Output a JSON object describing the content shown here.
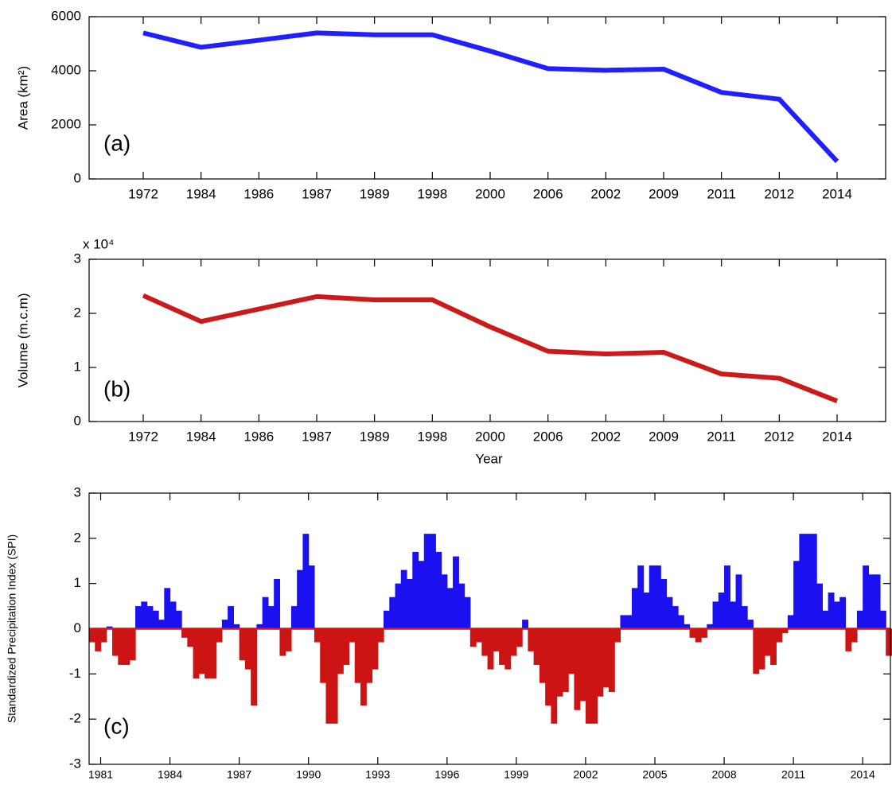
{
  "chart_data": [
    {
      "type": "line",
      "annotation": "(a)",
      "y_label": "Area (km²)",
      "categories": [
        "1972",
        "1984",
        "1986",
        "1987",
        "1989",
        "1998",
        "2000",
        "2006",
        "2002",
        "2009",
        "2011",
        "2012",
        "2014"
      ],
      "values": [
        5400,
        4870,
        5130,
        5400,
        5330,
        5330,
        4730,
        4080,
        4020,
        4060,
        3200,
        2950,
        650
      ],
      "color": "#1f1fff",
      "ylim": [
        0,
        6000
      ],
      "yticks": [
        0,
        2000,
        4000,
        6000
      ]
    },
    {
      "type": "line",
      "annotation": "(b)",
      "y_label": "Volume (m.c.m)",
      "y_multiplier": "x 10⁴",
      "x_label": "Year",
      "categories": [
        "1972",
        "1984",
        "1986",
        "1987",
        "1989",
        "1998",
        "2000",
        "2006",
        "2002",
        "2009",
        "2011",
        "2012",
        "2014"
      ],
      "values": [
        23300,
        18500,
        20800,
        23100,
        22500,
        22500,
        17500,
        13000,
        12500,
        12800,
        8800,
        8000,
        3800
      ],
      "color": "#cc1a1a",
      "ylim": [
        0,
        30000
      ],
      "yticks": [
        {
          "value": 0,
          "label": "0"
        },
        {
          "value": 10000,
          "label": "1"
        },
        {
          "value": 20000,
          "label": "2"
        },
        {
          "value": 30000,
          "label": "3"
        }
      ]
    },
    {
      "type": "area",
      "annotation": "(c)",
      "y_label": "Standardized Precipitation Index (SPI)",
      "x": [
        1980.5,
        1980.75,
        1981,
        1981.25,
        1981.5,
        1981.75,
        1982,
        1982.25,
        1982.5,
        1982.75,
        1983,
        1983.25,
        1983.5,
        1983.75,
        1984,
        1984.25,
        1984.5,
        1984.75,
        1985,
        1985.25,
        1985.5,
        1985.75,
        1986,
        1986.25,
        1986.5,
        1986.75,
        1987,
        1987.25,
        1987.5,
        1987.75,
        1988,
        1988.25,
        1988.5,
        1988.75,
        1989,
        1989.25,
        1989.5,
        1989.75,
        1990,
        1990.25,
        1990.5,
        1990.75,
        1991,
        1991.25,
        1991.5,
        1991.75,
        1992,
        1992.25,
        1992.5,
        1992.75,
        1993,
        1993.25,
        1993.5,
        1993.75,
        1994,
        1994.25,
        1994.5,
        1994.75,
        1995,
        1995.25,
        1995.5,
        1995.75,
        1996,
        1996.25,
        1996.5,
        1996.75,
        1997,
        1997.25,
        1997.5,
        1997.75,
        1998,
        1998.25,
        1998.5,
        1998.75,
        1999,
        1999.25,
        1999.5,
        1999.75,
        2000,
        2000.25,
        2000.5,
        2000.75,
        2001,
        2001.25,
        2001.5,
        2001.75,
        2002,
        2002.25,
        2002.5,
        2002.75,
        2003,
        2003.25,
        2003.5,
        2003.75,
        2004,
        2004.25,
        2004.5,
        2004.75,
        2005,
        2005.25,
        2005.5,
        2005.75,
        2006,
        2006.25,
        2006.5,
        2006.75,
        2007,
        2007.25,
        2007.5,
        2007.75,
        2008,
        2008.25,
        2008.5,
        2008.75,
        2009,
        2009.25,
        2009.5,
        2009.75,
        2010,
        2010.25,
        2010.5,
        2010.75,
        2011,
        2011.25,
        2011.5,
        2011.75,
        2012,
        2012.25,
        2012.5,
        2012.75,
        2013,
        2013.25,
        2013.5,
        2013.75,
        2014,
        2014.25,
        2014.5,
        2014.75,
        2015
      ],
      "values": [
        -0.3,
        -0.5,
        -0.3,
        0.05,
        -0.6,
        -0.8,
        -0.8,
        -0.7,
        0.5,
        0.6,
        0.5,
        0.4,
        0.2,
        0.9,
        0.6,
        0.4,
        -0.2,
        -0.4,
        -1.1,
        -1.0,
        -1.1,
        -1.1,
        -0.3,
        0.2,
        0.5,
        0.1,
        -0.7,
        -0.9,
        -1.7,
        0.1,
        0.7,
        0.5,
        1.1,
        -0.6,
        -0.5,
        0.5,
        1.3,
        2.1,
        1.4,
        -0.3,
        -1.2,
        -2.1,
        -2.1,
        -1.0,
        -0.8,
        -0.3,
        -1.2,
        -1.7,
        -1.2,
        -0.9,
        -0.3,
        0.4,
        0.7,
        1.0,
        1.3,
        1.1,
        1.7,
        1.5,
        2.1,
        2.1,
        1.7,
        1.2,
        0.9,
        1.6,
        1.0,
        0.7,
        -0.4,
        -0.3,
        -0.6,
        -0.9,
        -0.5,
        -0.8,
        -0.9,
        -0.6,
        -0.4,
        0.2,
        -0.5,
        -0.8,
        -1.2,
        -1.7,
        -2.1,
        -1.5,
        -1.4,
        -1.0,
        -1.8,
        -1.6,
        -2.1,
        -2.1,
        -1.5,
        -1.3,
        -1.4,
        -0.3,
        0.3,
        0.3,
        0.9,
        1.4,
        0.8,
        1.4,
        1.4,
        1.1,
        0.7,
        0.5,
        0.3,
        0.1,
        -0.2,
        -0.3,
        -0.2,
        0.1,
        0.6,
        0.8,
        1.4,
        0.6,
        1.2,
        0.5,
        0.2,
        -1.0,
        -0.9,
        -0.6,
        -0.8,
        -0.3,
        -0.1,
        0.3,
        1.5,
        2.1,
        2.1,
        2.1,
        1.0,
        0.4,
        0.8,
        0.6,
        0.7,
        -0.5,
        -0.3,
        0.4,
        1.4,
        1.2,
        1.2,
        0.4,
        -0.6
      ],
      "pos_color": "#1a10f0",
      "neg_color": "#cc1414",
      "zero_line_color": "#e01010",
      "xlim": [
        1980.5,
        2015.2
      ],
      "xticks": [
        1981,
        1984,
        1987,
        1990,
        1993,
        1996,
        1999,
        2002,
        2005,
        2008,
        2011,
        2014
      ],
      "ylim": [
        -3,
        3
      ],
      "yticks": [
        -3,
        -2,
        -1,
        0,
        1,
        2,
        3
      ]
    }
  ]
}
